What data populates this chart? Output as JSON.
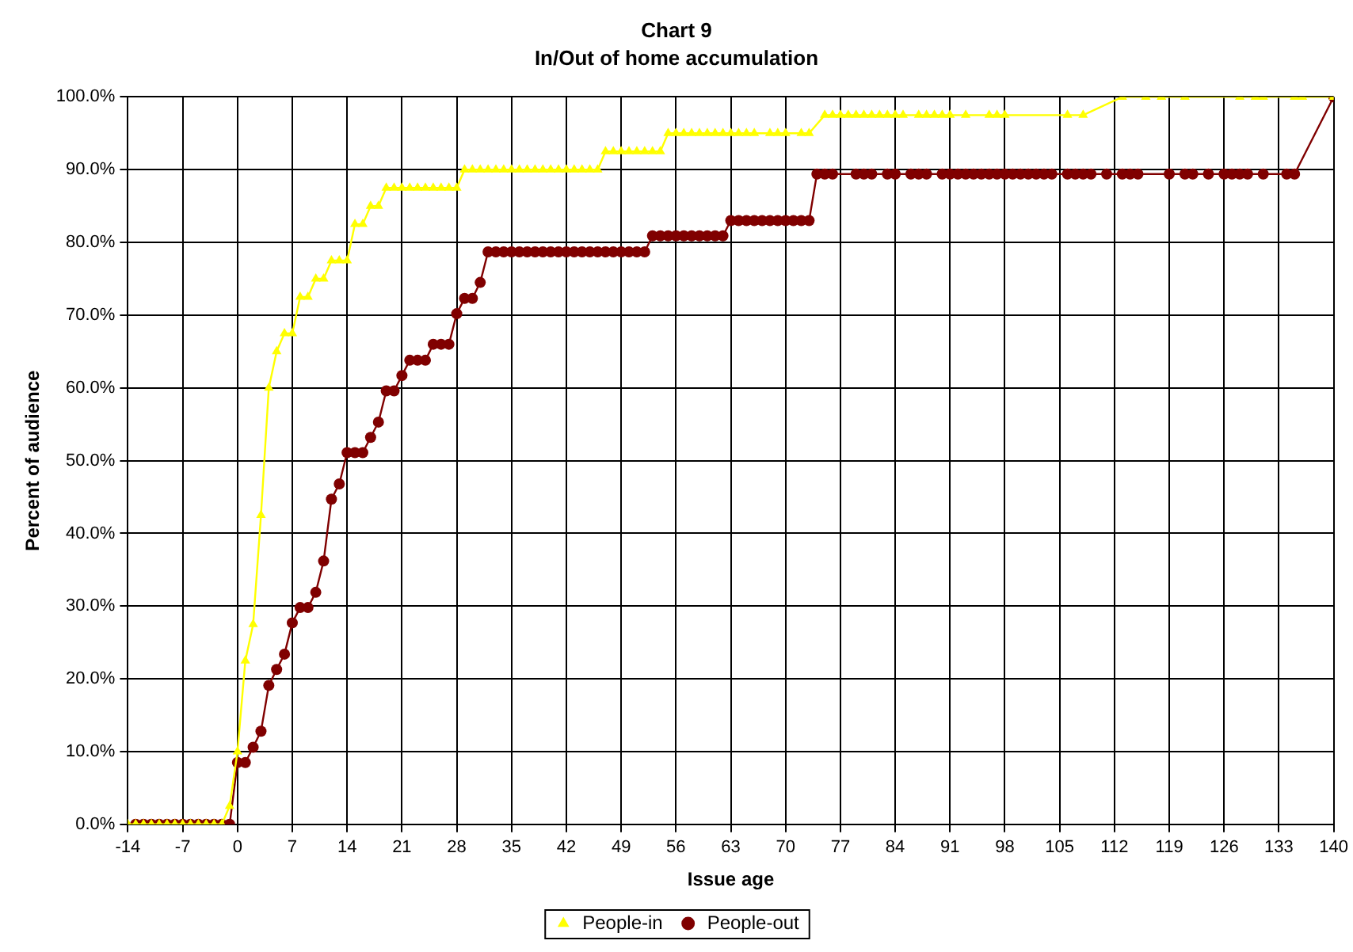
{
  "chart_data": {
    "type": "line",
    "title": "Chart 9",
    "subtitle": "In/Out of home accumulation",
    "xlabel": "Issue age",
    "ylabel": "Percent of audience",
    "xlim": [
      -14,
      140
    ],
    "xticks": [
      -14,
      -7,
      0,
      7,
      14,
      21,
      28,
      35,
      42,
      49,
      56,
      63,
      70,
      77,
      84,
      91,
      98,
      105,
      112,
      119,
      126,
      133,
      140
    ],
    "ylim": [
      0,
      100
    ],
    "yticks": [
      {
        "value": 0,
        "label": "0.0%"
      },
      {
        "value": 10,
        "label": "10.0%"
      },
      {
        "value": 20,
        "label": "20.0%"
      },
      {
        "value": 30,
        "label": "30.0%"
      },
      {
        "value": 40,
        "label": "40.0%"
      },
      {
        "value": 50,
        "label": "50.0%"
      },
      {
        "value": 60,
        "label": "60.0%"
      },
      {
        "value": 70,
        "label": "70.0%"
      },
      {
        "value": 80,
        "label": "80.0%"
      },
      {
        "value": 90,
        "label": "90.0%"
      },
      {
        "value": 100,
        "label": "100.0%"
      }
    ],
    "grid": true,
    "legend": "bottom",
    "line_style": "solid",
    "series": [
      {
        "name": "People-in",
        "color": "#ffff00",
        "marker": "triangle",
        "x": [
          -14,
          -13,
          -12,
          -11,
          -10,
          -9,
          -8,
          -7,
          -6,
          -5,
          -4,
          -3,
          -2,
          -1,
          0,
          1,
          2,
          3,
          4,
          5,
          6,
          7,
          8,
          9,
          10,
          11,
          12,
          13,
          14,
          15,
          16,
          17,
          18,
          19,
          20,
          21,
          22,
          23,
          24,
          25,
          26,
          27,
          28,
          29,
          30,
          31,
          32,
          33,
          34,
          35,
          36,
          37,
          38,
          39,
          40,
          41,
          42,
          43,
          44,
          45,
          46,
          47,
          48,
          49,
          50,
          51,
          52,
          53,
          54,
          55,
          56,
          57,
          58,
          59,
          60,
          61,
          62,
          63,
          64,
          65,
          66,
          68,
          69,
          70,
          72,
          73,
          75,
          76,
          77,
          78,
          79,
          80,
          81,
          82,
          83,
          84,
          85,
          87,
          88,
          89,
          90,
          91,
          93,
          96,
          97,
          98,
          106,
          108,
          113,
          116,
          118,
          121,
          128,
          130,
          131,
          135,
          136,
          140
        ],
        "values": [
          0,
          0,
          0,
          0,
          0,
          0,
          0,
          0,
          0,
          0,
          0,
          0,
          0,
          2.5,
          10,
          22.5,
          27.5,
          42.5,
          60,
          65,
          67.5,
          67.5,
          72.5,
          72.5,
          75,
          75,
          77.5,
          77.5,
          77.5,
          82.5,
          82.5,
          85,
          85,
          87.5,
          87.5,
          87.5,
          87.5,
          87.5,
          87.5,
          87.5,
          87.5,
          87.5,
          87.5,
          90,
          90,
          90,
          90,
          90,
          90,
          90,
          90,
          90,
          90,
          90,
          90,
          90,
          90,
          90,
          90,
          90,
          90,
          92.5,
          92.5,
          92.5,
          92.5,
          92.5,
          92.5,
          92.5,
          92.5,
          95,
          95,
          95,
          95,
          95,
          95,
          95,
          95,
          95,
          95,
          95,
          95,
          95,
          95,
          95,
          95,
          95,
          97.5,
          97.5,
          97.5,
          97.5,
          97.5,
          97.5,
          97.5,
          97.5,
          97.5,
          97.5,
          97.5,
          97.5,
          97.5,
          97.5,
          97.5,
          97.5,
          97.5,
          97.5,
          97.5,
          97.5,
          97.5,
          97.5,
          100,
          100,
          100,
          100,
          100,
          100,
          100,
          100,
          100,
          100
        ]
      },
      {
        "name": "People-out",
        "color": "#800000",
        "marker": "circle",
        "x": [
          -13,
          -12,
          -11,
          -10,
          -9,
          -8,
          -7,
          -6,
          -5,
          -4,
          -3,
          -2,
          -1,
          0,
          1,
          2,
          3,
          4,
          5,
          6,
          7,
          8,
          9,
          10,
          11,
          12,
          13,
          14,
          15,
          16,
          17,
          18,
          19,
          20,
          21,
          22,
          23,
          24,
          25,
          26,
          27,
          28,
          29,
          30,
          31,
          32,
          33,
          34,
          35,
          36,
          37,
          38,
          39,
          40,
          41,
          42,
          43,
          44,
          45,
          46,
          47,
          48,
          49,
          50,
          51,
          52,
          53,
          54,
          55,
          56,
          57,
          58,
          59,
          60,
          61,
          62,
          63,
          64,
          65,
          66,
          67,
          68,
          69,
          70,
          71,
          72,
          73,
          74,
          75,
          76,
          79,
          80,
          81,
          83,
          84,
          86,
          87,
          88,
          90,
          91,
          92,
          93,
          94,
          95,
          96,
          97,
          98,
          99,
          100,
          101,
          102,
          103,
          104,
          106,
          107,
          108,
          109,
          111,
          113,
          114,
          115,
          119,
          121,
          122,
          124,
          126,
          127,
          128,
          129,
          131,
          134,
          135,
          140
        ],
        "values": [
          0,
          0,
          0,
          0,
          0,
          0,
          0,
          0,
          0,
          0,
          0,
          0,
          0,
          8.5,
          8.5,
          10.6,
          12.8,
          19.1,
          21.3,
          23.4,
          27.7,
          29.8,
          29.8,
          31.9,
          36.2,
          44.7,
          46.8,
          51.1,
          51.1,
          51.1,
          53.2,
          55.3,
          59.6,
          59.6,
          61.7,
          63.8,
          63.8,
          63.8,
          66,
          66,
          66,
          70.2,
          72.3,
          72.3,
          74.5,
          78.7,
          78.7,
          78.7,
          78.7,
          78.7,
          78.7,
          78.7,
          78.7,
          78.7,
          78.7,
          78.7,
          78.7,
          78.7,
          78.7,
          78.7,
          78.7,
          78.7,
          78.7,
          78.7,
          78.7,
          78.7,
          80.9,
          80.9,
          80.9,
          80.9,
          80.9,
          80.9,
          80.9,
          80.9,
          80.9,
          80.9,
          83,
          83,
          83,
          83,
          83,
          83,
          83,
          83,
          83,
          83,
          83,
          89.4,
          89.4,
          89.4,
          89.4,
          89.4,
          89.4,
          89.4,
          89.4,
          89.4,
          89.4,
          89.4,
          89.4,
          89.4,
          89.4,
          89.4,
          89.4,
          89.4,
          89.4,
          89.4,
          89.4,
          89.4,
          89.4,
          89.4,
          89.4,
          89.4,
          89.4,
          89.4,
          89.4,
          89.4,
          89.4,
          89.4,
          89.4,
          89.4,
          89.4,
          89.4,
          89.4,
          89.4,
          89.4,
          89.4,
          89.4,
          89.4,
          89.4,
          89.4,
          89.4,
          89.4,
          100
        ]
      }
    ]
  }
}
